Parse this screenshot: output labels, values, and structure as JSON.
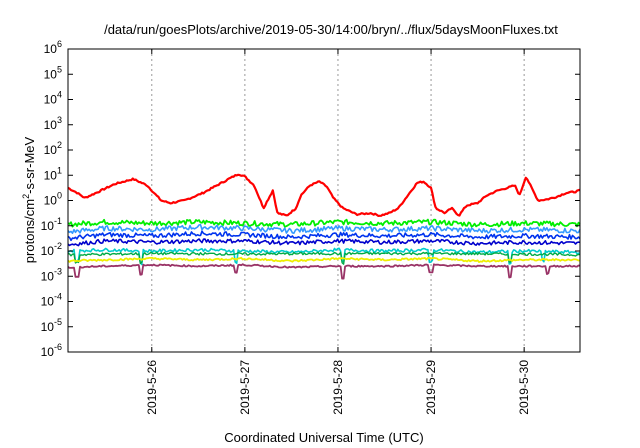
{
  "chart_data": {
    "type": "line",
    "title": "/data/run/goesPlots/archive/2019-05-30/14:00/bryn/../flux/5daysMoonFluxes.txt",
    "xlabel": "Coordinated Universal Time (UTC)",
    "ylabel_main": "protons/cm",
    "ylabel_sup": "2",
    "ylabel_tail": "-s-sr-MeV",
    "y_scale": "log",
    "ylim_exp": [
      -6,
      6
    ],
    "y_ticks": [
      {
        "base": "10",
        "exp": "6"
      },
      {
        "base": "10",
        "exp": "5"
      },
      {
        "base": "10",
        "exp": "4"
      },
      {
        "base": "10",
        "exp": "3"
      },
      {
        "base": "10",
        "exp": "2"
      },
      {
        "base": "10",
        "exp": "1"
      },
      {
        "base": "10",
        "exp": "0"
      },
      {
        "base": "10",
        "exp": "-1"
      },
      {
        "base": "10",
        "exp": "-2"
      },
      {
        "base": "10",
        "exp": "-3"
      },
      {
        "base": "10",
        "exp": "-4"
      },
      {
        "base": "10",
        "exp": "-5"
      },
      {
        "base": "10",
        "exp": "-6"
      }
    ],
    "x_domain_days": [
      25.1,
      30.6
    ],
    "x_ticks": [
      {
        "day": 26,
        "label": "2019-5-26"
      },
      {
        "day": 27,
        "label": "2019-5-27"
      },
      {
        "day": 28,
        "label": "2019-5-28"
      },
      {
        "day": 29,
        "label": "2019-5-29"
      },
      {
        "day": 30,
        "label": "2019-5-30"
      }
    ],
    "grid": true,
    "series": [
      {
        "color": "#ff0000",
        "stroke": 2.2,
        "noise": 0.03,
        "spikes": [],
        "points": [
          [
            25.1,
            0.5
          ],
          [
            25.2,
            0.3
          ],
          [
            25.28,
            0.1
          ],
          [
            25.4,
            0.3
          ],
          [
            25.6,
            0.65
          ],
          [
            25.8,
            0.85
          ],
          [
            25.95,
            0.6
          ],
          [
            26.1,
            0.0
          ],
          [
            26.2,
            -0.1
          ],
          [
            26.35,
            0.0
          ],
          [
            26.55,
            0.3
          ],
          [
            26.7,
            0.6
          ],
          [
            26.85,
            0.9
          ],
          [
            26.93,
            1.05
          ],
          [
            27.0,
            0.95
          ],
          [
            27.1,
            0.6
          ],
          [
            27.2,
            -0.3
          ],
          [
            27.3,
            0.4
          ],
          [
            27.35,
            -0.5
          ],
          [
            27.45,
            -0.6
          ],
          [
            27.55,
            -0.3
          ],
          [
            27.6,
            0.2
          ],
          [
            27.7,
            0.6
          ],
          [
            27.8,
            0.75
          ],
          [
            27.88,
            0.55
          ],
          [
            27.95,
            0.1
          ],
          [
            28.05,
            -0.3
          ],
          [
            28.2,
            -0.55
          ],
          [
            28.35,
            -0.5
          ],
          [
            28.45,
            -0.6
          ],
          [
            28.55,
            -0.5
          ],
          [
            28.65,
            -0.3
          ],
          [
            28.75,
            0.2
          ],
          [
            28.85,
            0.7
          ],
          [
            28.92,
            0.75
          ],
          [
            29.0,
            0.5
          ],
          [
            29.05,
            -0.3
          ],
          [
            29.15,
            -0.5
          ],
          [
            29.22,
            -0.3
          ],
          [
            29.3,
            -0.6
          ],
          [
            29.38,
            -0.2
          ],
          [
            29.5,
            -0.1
          ],
          [
            29.6,
            0.2
          ],
          [
            29.72,
            0.4
          ],
          [
            29.82,
            0.5
          ],
          [
            29.9,
            0.6
          ],
          [
            29.95,
            0.2
          ],
          [
            30.02,
            0.95
          ],
          [
            30.08,
            0.5
          ],
          [
            30.15,
            0.0
          ],
          [
            30.25,
            0.05
          ],
          [
            30.35,
            0.15
          ],
          [
            30.45,
            0.3
          ],
          [
            30.55,
            0.35
          ],
          [
            30.6,
            0.4
          ]
        ]
      },
      {
        "color": "#00ee00",
        "stroke": 1.8,
        "noise": 0.1,
        "spikes": [],
        "points": [
          [
            25.1,
            -0.95
          ],
          [
            25.5,
            -0.85
          ],
          [
            26.0,
            -0.9
          ],
          [
            26.5,
            -0.85
          ],
          [
            27.0,
            -0.9
          ],
          [
            27.5,
            -0.95
          ],
          [
            28.0,
            -0.85
          ],
          [
            28.5,
            -0.9
          ],
          [
            29.0,
            -0.85
          ],
          [
            29.5,
            -0.95
          ],
          [
            30.0,
            -0.9
          ],
          [
            30.6,
            -0.95
          ]
        ]
      },
      {
        "color": "#3399ff",
        "stroke": 1.6,
        "noise": 0.1,
        "spikes": [],
        "points": [
          [
            25.1,
            -1.25
          ],
          [
            25.5,
            -1.1
          ],
          [
            26.0,
            -1.15
          ],
          [
            26.5,
            -1.05
          ],
          [
            27.0,
            -1.1
          ],
          [
            27.5,
            -1.2
          ],
          [
            28.0,
            -1.1
          ],
          [
            28.5,
            -1.15
          ],
          [
            29.0,
            -1.1
          ],
          [
            29.5,
            -1.2
          ],
          [
            30.0,
            -1.15
          ],
          [
            30.6,
            -1.2
          ]
        ]
      },
      {
        "color": "#0033ee",
        "stroke": 1.6,
        "noise": 0.09,
        "spikes": [],
        "points": [
          [
            25.1,
            -1.5
          ],
          [
            25.5,
            -1.35
          ],
          [
            26.0,
            -1.4
          ],
          [
            26.5,
            -1.3
          ],
          [
            27.0,
            -1.35
          ],
          [
            27.5,
            -1.45
          ],
          [
            28.0,
            -1.35
          ],
          [
            28.5,
            -1.4
          ],
          [
            29.0,
            -1.35
          ],
          [
            29.5,
            -1.45
          ],
          [
            30.0,
            -1.4
          ],
          [
            30.6,
            -1.45
          ]
        ]
      },
      {
        "color": "#0000cc",
        "stroke": 1.6,
        "noise": 0.08,
        "spikes": [],
        "points": [
          [
            25.1,
            -1.75
          ],
          [
            25.5,
            -1.6
          ],
          [
            26.0,
            -1.65
          ],
          [
            26.5,
            -1.6
          ],
          [
            27.0,
            -1.6
          ],
          [
            27.5,
            -1.7
          ],
          [
            28.0,
            -1.6
          ],
          [
            28.5,
            -1.65
          ],
          [
            29.0,
            -1.6
          ],
          [
            29.5,
            -1.7
          ],
          [
            30.0,
            -1.65
          ],
          [
            30.6,
            -1.7
          ]
        ]
      },
      {
        "color": "#00cccc",
        "stroke": 1.6,
        "noise": 0.06,
        "spikes": [
          [
            25.2,
            -0.4
          ],
          [
            25.88,
            -0.5
          ],
          [
            26.9,
            -0.45
          ],
          [
            28.05,
            -0.5
          ],
          [
            29.0,
            -0.45
          ],
          [
            29.85,
            -0.5
          ],
          [
            30.2,
            -0.4
          ]
        ],
        "points": [
          [
            25.1,
            -2.0
          ],
          [
            25.5,
            -1.95
          ],
          [
            26.0,
            -2.0
          ],
          [
            26.5,
            -1.95
          ],
          [
            27.0,
            -2.0
          ],
          [
            27.5,
            -2.05
          ],
          [
            28.0,
            -1.95
          ],
          [
            28.5,
            -2.0
          ],
          [
            29.0,
            -1.95
          ],
          [
            29.5,
            -2.05
          ],
          [
            30.0,
            -2.0
          ],
          [
            30.6,
            -2.05
          ]
        ]
      },
      {
        "color": "#00aa44",
        "stroke": 1.4,
        "noise": 0.05,
        "spikes": [
          [
            25.2,
            -0.3
          ],
          [
            25.88,
            -0.35
          ],
          [
            28.05,
            -0.4
          ],
          [
            29.85,
            -0.35
          ]
        ],
        "points": [
          [
            25.1,
            -2.15
          ],
          [
            26.0,
            -2.1
          ],
          [
            27.0,
            -2.12
          ],
          [
            28.0,
            -2.1
          ],
          [
            29.0,
            -2.1
          ],
          [
            30.0,
            -2.12
          ],
          [
            30.6,
            -2.15
          ]
        ]
      },
      {
        "color": "#eeee00",
        "stroke": 1.8,
        "noise": 0.04,
        "spikes": [],
        "points": [
          [
            25.1,
            -2.4
          ],
          [
            25.5,
            -2.35
          ],
          [
            26.0,
            -2.3
          ],
          [
            26.5,
            -2.35
          ],
          [
            27.0,
            -2.3
          ],
          [
            27.5,
            -2.4
          ],
          [
            28.0,
            -2.3
          ],
          [
            28.5,
            -2.35
          ],
          [
            29.0,
            -2.3
          ],
          [
            29.5,
            -2.4
          ],
          [
            30.0,
            -2.35
          ],
          [
            30.6,
            -2.35
          ]
        ]
      },
      {
        "color": "#993366",
        "stroke": 1.8,
        "noise": 0.03,
        "spikes": [
          [
            25.2,
            -0.4
          ],
          [
            25.88,
            -0.35
          ],
          [
            26.9,
            -0.3
          ],
          [
            28.05,
            -0.5
          ],
          [
            29.0,
            -0.3
          ],
          [
            29.85,
            -0.45
          ],
          [
            30.25,
            -0.3
          ]
        ],
        "points": [
          [
            25.1,
            -2.65
          ],
          [
            25.5,
            -2.6
          ],
          [
            26.0,
            -2.55
          ],
          [
            26.5,
            -2.6
          ],
          [
            27.0,
            -2.55
          ],
          [
            27.5,
            -2.65
          ],
          [
            28.0,
            -2.6
          ],
          [
            28.5,
            -2.6
          ],
          [
            29.0,
            -2.55
          ],
          [
            29.5,
            -2.6
          ],
          [
            30.0,
            -2.6
          ],
          [
            30.6,
            -2.6
          ]
        ]
      }
    ]
  }
}
